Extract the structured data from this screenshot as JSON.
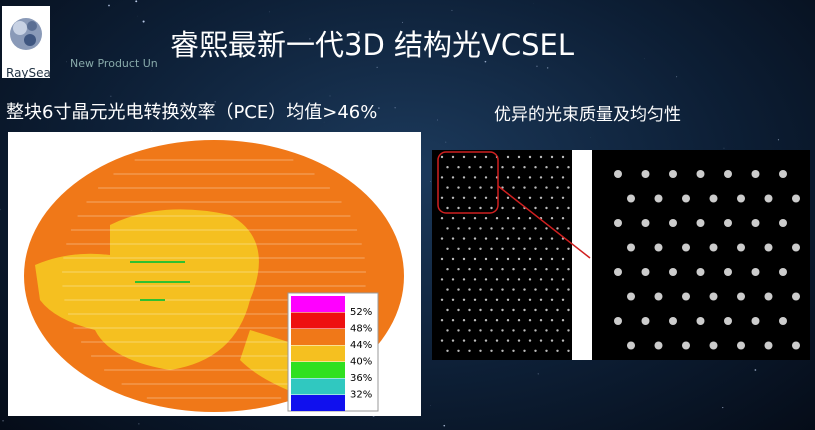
{
  "logo": {
    "text": "RaySea",
    "tagline": "New Product Un"
  },
  "title": "睿熙最新一代3D 结构光VCSEL",
  "left": {
    "heading": "整块6寸晶元光电转换效率（PCE）均值>46%",
    "legend": [
      {
        "label": "52%",
        "color": "#ff00ff"
      },
      {
        "label": "48%",
        "color": "#ee1010"
      },
      {
        "label": "44%",
        "color": "#f07818"
      },
      {
        "label": "40%",
        "color": "#f5c020"
      },
      {
        "label": "36%",
        "color": "#30e020"
      },
      {
        "label": "32%",
        "color": "#30c8c0"
      },
      {
        "label": "",
        "color": "#1010ee"
      }
    ]
  },
  "right": {
    "heading": "优异的光束质量及均匀性"
  }
}
